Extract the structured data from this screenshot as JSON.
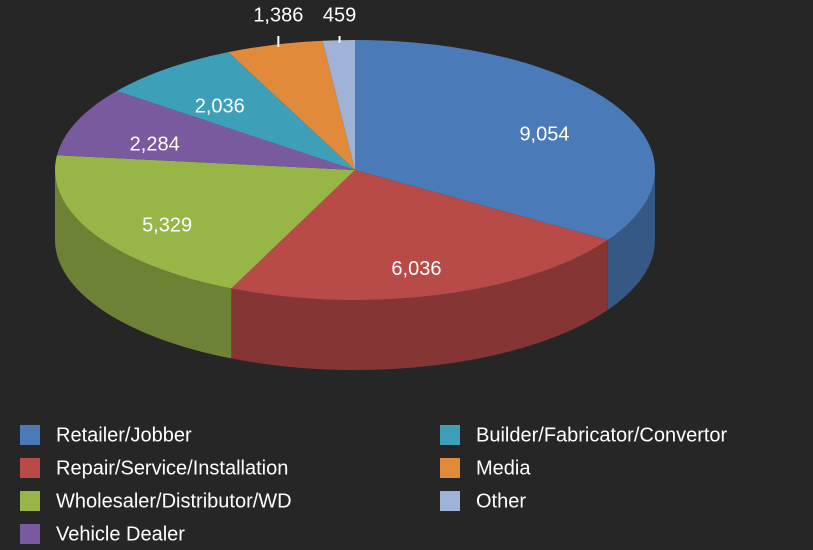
{
  "chart_data": {
    "type": "pie",
    "categories": [
      "Retailer/Jobber",
      "Repair/Service/Installation",
      "Wholesaler/Distributor/WD",
      "Vehicle Dealer",
      "Builder/Fabricator/Convertor",
      "Media",
      "Other"
    ],
    "values": [
      9054,
      6036,
      5329,
      2284,
      2036,
      1386,
      459
    ],
    "value_labels": [
      "9,054",
      "6,036",
      "5,329",
      "2,284",
      "2,036",
      "1,386",
      "459"
    ],
    "colors": [
      "#4a7ab8",
      "#b84a48",
      "#98b548",
      "#7a5a9e",
      "#3e9fb8",
      "#e08a3a",
      "#9fb3d8"
    ]
  }
}
